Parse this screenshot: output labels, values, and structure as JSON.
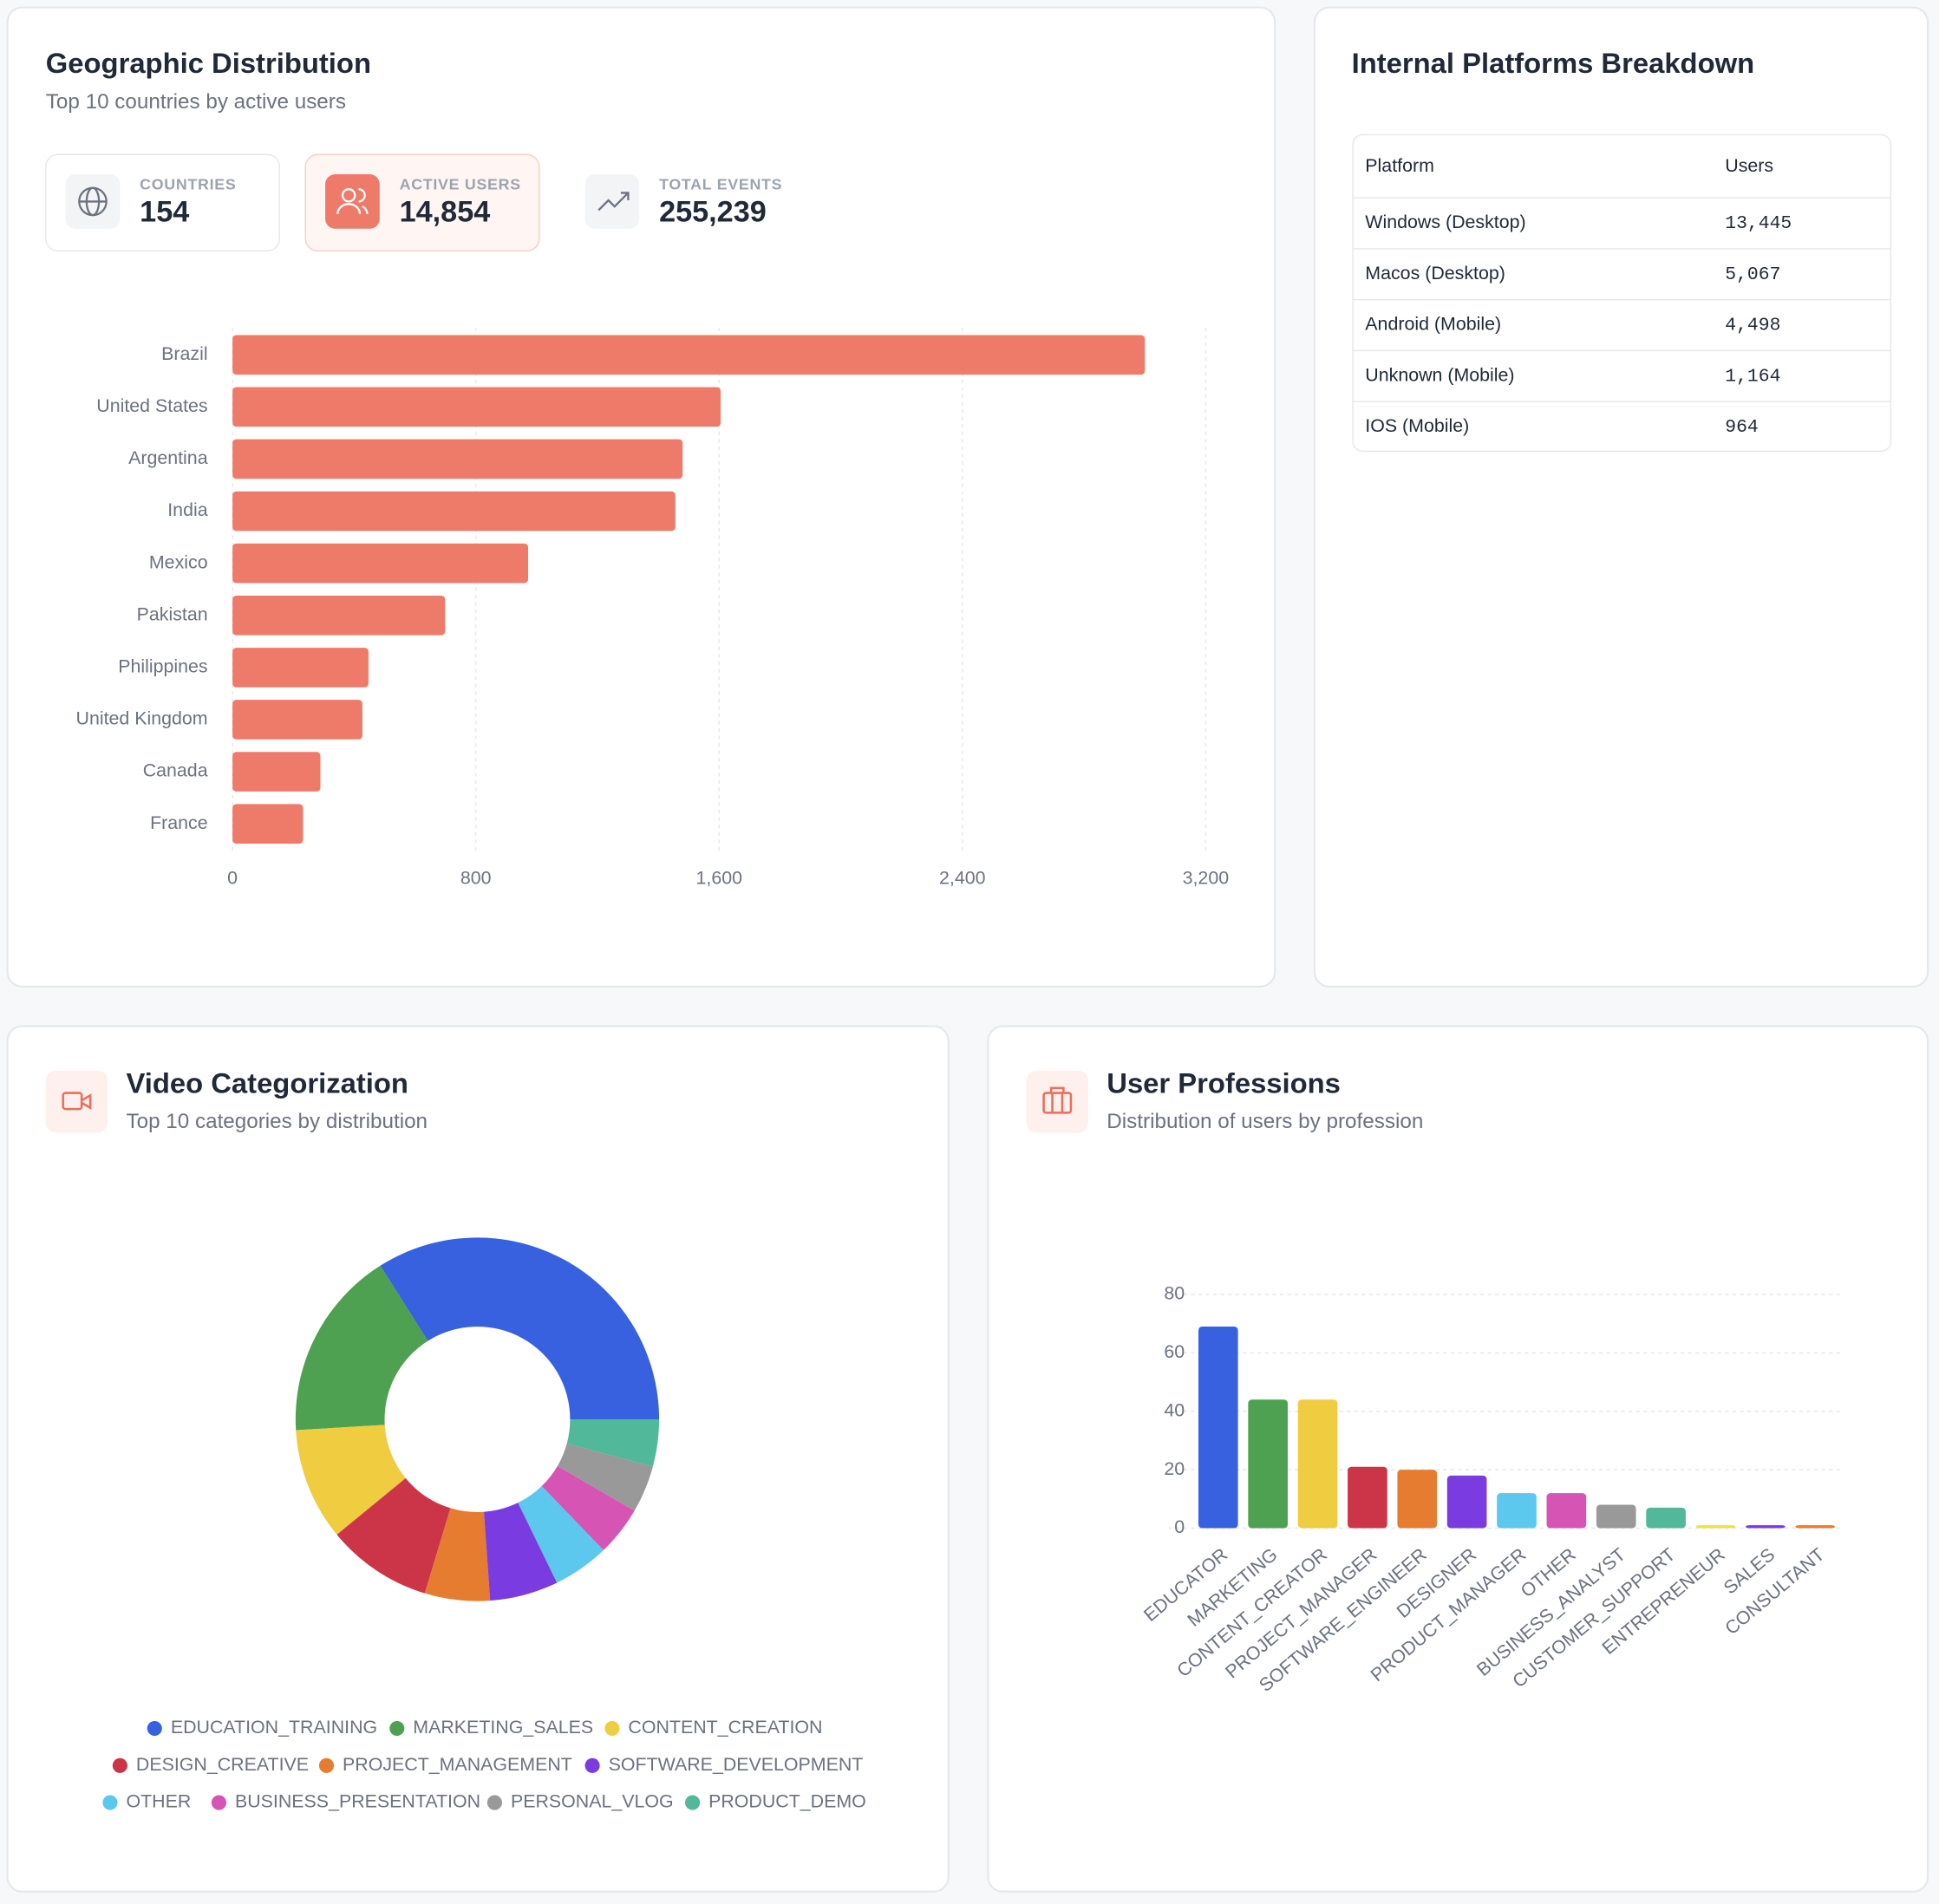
{
  "stats": [
    {
      "label": "COUNTRIES",
      "value": "154"
    },
    {
      "label": "ACTIVE USERS",
      "value": "14,854"
    },
    {
      "label": "TOTAL EVENTS",
      "value": "255,239"
    }
  ],
  "platforms": {
    "title": "Internal Platforms Breakdown",
    "table": {
      "header": [
        "Platform",
        "Users"
      ],
      "rows": [
        [
          "Windows (Desktop)",
          "13,445"
        ],
        [
          "Macos (Desktop)",
          "5,067"
        ],
        [
          "Android (Mobile)",
          "4,498"
        ],
        [
          "Unknown (Mobile)",
          "1,164"
        ],
        [
          "IOS (Mobile)",
          "964"
        ]
      ]
    }
  },
  "chart_data": [
    {
      "type": "hbar",
      "title": "Geographic Distribution",
      "subtitle": "Top 10 countries by active users",
      "categories": [
        "Brazil",
        "United States",
        "Argentina",
        "India",
        "Mexico",
        "Pakistan",
        "Philippines",
        "United Kingdom",
        "Canada",
        "France"
      ],
      "values": [
        3000,
        1605,
        1480,
        1456,
        972,
        699,
        447,
        427,
        289,
        232
      ],
      "color": "#ee7a69",
      "xlim": [
        0,
        3200
      ],
      "xticks": [
        0,
        800,
        {
          "value": 1600,
          "label": "1,600"
        },
        {
          "value": 2400,
          "label": "2,400"
        },
        {
          "value": 3200,
          "label": "3,200"
        }
      ],
      "grid": true
    },
    {
      "type": "donut",
      "title": "Video Categorization",
      "subtitle": "Top 10 categories by distribution",
      "categories": [
        "EDUCATION_TRAINING",
        "MARKETING_SALES",
        "CONTENT_CREATION",
        "DESIGN_CREATIVE",
        "PROJECT_MANAGEMENT",
        "SOFTWARE_DEVELOPMENT",
        "OTHER",
        "BUSINESS_PRESENTATION",
        "PERSONAL_VLOG",
        "PRODUCT_DEMO"
      ],
      "values": [
        34,
        17,
        10,
        9.4,
        5.8,
        6.1,
        5,
        4.4,
        4.2,
        4.2
      ],
      "colors": [
        "#3861e0",
        "#4ea150",
        "#f0cc40",
        "#cc3548",
        "#e67c30",
        "#7a3ce0",
        "#5cc8ee",
        "#d654b4",
        "#999999",
        "#52b89a"
      ]
    },
    {
      "type": "bar",
      "title": "User Professions",
      "subtitle": "Distribution of users by profession",
      "categories": [
        "EDUCATOR",
        "MARKETING",
        "CONTENT_CREATOR",
        "PROJECT_MANAGER",
        "SOFTWARE_ENGINEER",
        "DESIGNER",
        "PRODUCT_MANAGER",
        "OTHER",
        "BUSINESS_ANALYST",
        "CUSTOMER_SUPPORT",
        "ENTREPRENEUR",
        "SALES",
        "CONSULTANT"
      ],
      "values": [
        69,
        44,
        44,
        21,
        20,
        18,
        12,
        12,
        8,
        7,
        1,
        1,
        1
      ],
      "colors": [
        "#3861e0",
        "#4ea150",
        "#f0cc40",
        "#cc3548",
        "#e67c30",
        "#7a3ce0",
        "#5cc8ee",
        "#d654b4",
        "#999999",
        "#52b89a",
        "#f0e040",
        "#7a3ce0",
        "#e67c30"
      ],
      "ylim": [
        0,
        80
      ],
      "yticks": [
        0,
        20,
        40,
        60,
        80
      ],
      "grid": true
    }
  ]
}
